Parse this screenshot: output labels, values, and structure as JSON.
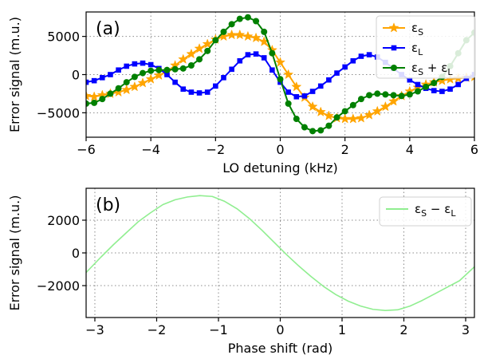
{
  "chart_data": [
    {
      "panel": "(a)",
      "type": "line",
      "xlabel": "LO detuning (kHz)",
      "ylabel": "Error signal (m.u.)",
      "xlim": [
        -6,
        6
      ],
      "ylim": [
        -8200,
        8200
      ],
      "xticks": [
        -6,
        -4,
        -2,
        0,
        2,
        4,
        6
      ],
      "xtick_labels": [
        "−6",
        "−4",
        "−2",
        "0",
        "2",
        "4",
        "6"
      ],
      "yticks": [
        5000,
        0,
        -5000
      ],
      "ytick_labels": [
        "5000",
        "0",
        "−5000"
      ],
      "grid": true,
      "legend_position": "top-right",
      "series": [
        {
          "name": "εS",
          "legend_main": "ε",
          "legend_sub": "S",
          "color": "#FFA500",
          "marker": "star",
          "x": [
            -6,
            -5.75,
            -5.5,
            -5.25,
            -5,
            -4.75,
            -4.5,
            -4.25,
            -4,
            -3.75,
            -3.5,
            -3.25,
            -3,
            -2.75,
            -2.5,
            -2.25,
            -2,
            -1.75,
            -1.5,
            -1.25,
            -1,
            -0.75,
            -0.5,
            -0.25,
            0,
            0.25,
            0.5,
            0.75,
            1,
            1.25,
            1.5,
            1.75,
            2,
            2.25,
            2.5,
            2.75,
            3,
            3.25,
            3.5,
            3.75,
            4,
            4.25,
            4.5,
            4.75,
            5,
            5.25,
            5.5,
            5.75,
            6
          ],
          "y": [
            -2800,
            -2900,
            -2700,
            -2500,
            -2300,
            -2000,
            -1600,
            -1100,
            -600,
            -100,
            400,
            1200,
            2000,
            2700,
            3400,
            4000,
            4600,
            5000,
            5200,
            5200,
            5000,
            4800,
            4300,
            3200,
            1600,
            0,
            -1600,
            -3000,
            -4200,
            -4900,
            -5400,
            -5700,
            -5800,
            -5800,
            -5700,
            -5300,
            -4800,
            -4200,
            -3500,
            -2800,
            -2200,
            -1700,
            -1300,
            -1000,
            -800,
            -600,
            -500,
            -400,
            -300
          ]
        },
        {
          "name": "εL",
          "legend_main": "ε",
          "legend_sub": "L",
          "color": "#0000FF",
          "marker": "square",
          "x": [
            -6,
            -5.75,
            -5.5,
            -5.25,
            -5,
            -4.75,
            -4.5,
            -4.25,
            -4,
            -3.75,
            -3.5,
            -3.25,
            -3,
            -2.75,
            -2.5,
            -2.25,
            -2,
            -1.75,
            -1.5,
            -1.25,
            -1,
            -0.75,
            -0.5,
            -0.25,
            0,
            0.25,
            0.5,
            0.75,
            1,
            1.25,
            1.5,
            1.75,
            2,
            2.25,
            2.5,
            2.75,
            3,
            3.25,
            3.5,
            3.75,
            4,
            4.25,
            4.5,
            4.75,
            5,
            5.25,
            5.5,
            5.75,
            6
          ],
          "y": [
            -1000,
            -800,
            -400,
            0,
            600,
            1100,
            1400,
            1500,
            1300,
            800,
            0,
            -1000,
            -1900,
            -2300,
            -2400,
            -2300,
            -1500,
            -400,
            700,
            1800,
            2600,
            2700,
            2200,
            600,
            -1000,
            -2300,
            -2900,
            -2800,
            -2200,
            -1500,
            -700,
            200,
            1000,
            1800,
            2400,
            2600,
            2300,
            1600,
            800,
            0,
            -700,
            -1300,
            -1800,
            -2100,
            -2200,
            -1900,
            -1300,
            -500,
            0
          ]
        },
        {
          "name": "εS + εL",
          "legend_main": "ε",
          "legend_sub": "S",
          "legend_main2": "ε",
          "legend_sub2": "L",
          "color": "#008000",
          "marker": "circle",
          "x": [
            -6,
            -5.75,
            -5.5,
            -5.25,
            -5,
            -4.75,
            -4.5,
            -4.25,
            -4,
            -3.75,
            -3.5,
            -3.25,
            -3,
            -2.75,
            -2.5,
            -2.25,
            -2,
            -1.75,
            -1.5,
            -1.25,
            -1,
            -0.75,
            -0.5,
            -0.25,
            0,
            0.25,
            0.5,
            0.75,
            1,
            1.25,
            1.5,
            1.75,
            2,
            2.25,
            2.5,
            2.75,
            3,
            3.25,
            3.5,
            3.75,
            4,
            4.25,
            4.5,
            4.75,
            5,
            5.25,
            5.5,
            5.75,
            6
          ],
          "y": [
            -3800,
            -3700,
            -3200,
            -2500,
            -1800,
            -1000,
            -300,
            200,
            500,
            600,
            600,
            700,
            800,
            1200,
            2000,
            3100,
            4500,
            5600,
            6600,
            7300,
            7500,
            7000,
            5600,
            2800,
            -600,
            -3800,
            -5800,
            -6900,
            -7400,
            -7300,
            -6700,
            -5600,
            -4800,
            -4000,
            -3200,
            -2700,
            -2500,
            -2600,
            -2700,
            -2800,
            -2600,
            -2200,
            -1600,
            -1100,
            -300,
            1100,
            2800,
            4500,
            5500
          ]
        }
      ]
    },
    {
      "panel": "(b)",
      "type": "line",
      "xlabel": "Phase shift (rad)",
      "ylabel": "Error signal (m.u.)",
      "xlim": [
        -3.1416,
        3.1416
      ],
      "ylim": [
        -3950,
        3950
      ],
      "xticks": [
        -3,
        -2,
        -1,
        0,
        1,
        2,
        3
      ],
      "xtick_labels": [
        "−3",
        "−2",
        "−1",
        "0",
        "1",
        "2",
        "3"
      ],
      "yticks": [
        2000,
        0,
        -2000
      ],
      "ytick_labels": [
        "2000",
        "0",
        "−2000"
      ],
      "grid": true,
      "legend_position": "top-right",
      "series": [
        {
          "name": "εS − εL",
          "legend_main": "ε",
          "legend_sub": "S",
          "legend_op": "−",
          "legend_main2": "ε",
          "legend_sub2": "L",
          "color": "#90EE90",
          "marker": "none",
          "x": [
            -3.1416,
            -2.9,
            -2.7,
            -2.5,
            -2.3,
            -2.1,
            -1.9,
            -1.7,
            -1.5,
            -1.3,
            -1.1,
            -0.9,
            -0.7,
            -0.5,
            -0.3,
            -0.1,
            0.1,
            0.3,
            0.5,
            0.7,
            0.9,
            1.1,
            1.3,
            1.5,
            1.7,
            1.9,
            2.1,
            2.3,
            2.5,
            2.7,
            2.9,
            3.1416
          ],
          "y": [
            -1200,
            -250,
            500,
            1200,
            1900,
            2450,
            2950,
            3250,
            3420,
            3500,
            3450,
            3150,
            2700,
            2100,
            1400,
            650,
            -100,
            -800,
            -1450,
            -2050,
            -2550,
            -2950,
            -3250,
            -3450,
            -3520,
            -3480,
            -3250,
            -2900,
            -2500,
            -2100,
            -1700,
            -850
          ]
        }
      ]
    }
  ]
}
